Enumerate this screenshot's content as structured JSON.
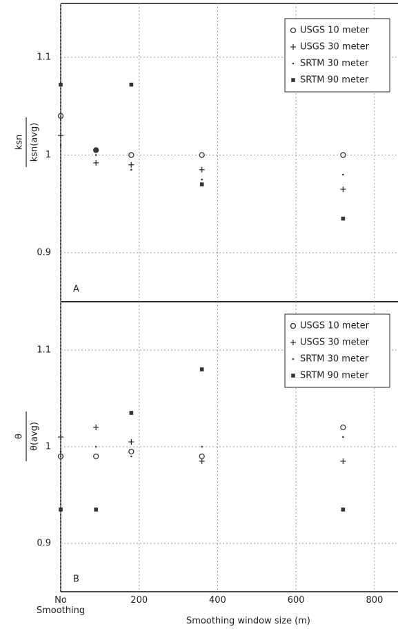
{
  "chart_data": [
    {
      "type": "scatter",
      "panel_label": "A",
      "ylabel_numerator": "ksn",
      "ylabel_denominator": "ksn(avg)",
      "x": [
        0,
        90,
        180,
        360,
        720
      ],
      "xlim": [
        0,
        860
      ],
      "xticks": [
        0,
        200,
        400,
        600,
        800
      ],
      "ylim": [
        0.85,
        1.155
      ],
      "yticks": [
        0.9,
        1,
        1.1
      ],
      "grid": true,
      "legend": "upper right",
      "series": [
        {
          "name": "USGS 10 meter",
          "marker": "circle",
          "color": "#333333",
          "values": [
            1.04,
            1.005,
            1.0,
            1.0,
            1.0
          ]
        },
        {
          "name": "USGS 30 meter",
          "marker": "plus",
          "color": "#333333",
          "values": [
            1.02,
            0.992,
            0.99,
            0.985,
            0.965
          ]
        },
        {
          "name": "SRTM 30 meter",
          "marker": "dot",
          "color": "#333333",
          "values": [
            1.01,
            1.0,
            0.985,
            0.975,
            0.98
          ]
        },
        {
          "name": "SRTM 90 meter",
          "marker": "square",
          "color": "#333333",
          "values": [
            1.072,
            1.005,
            1.072,
            0.97,
            0.935
          ]
        }
      ]
    },
    {
      "type": "scatter",
      "panel_label": "B",
      "ylabel_numerator": "θ",
      "ylabel_denominator": "θ(avg)",
      "xlabel": "Smoothing window size (m)",
      "x": [
        0,
        90,
        180,
        360,
        720
      ],
      "xlim": [
        0,
        860
      ],
      "xticks": [
        {
          "value": 0,
          "label": "No Smoothing"
        },
        200,
        400,
        600,
        800
      ],
      "ylim": [
        0.85,
        1.15
      ],
      "yticks": [
        0.9,
        1,
        1.1
      ],
      "grid": true,
      "legend": "upper right",
      "series": [
        {
          "name": "USGS 10 meter",
          "marker": "circle",
          "color": "#333333",
          "values": [
            0.99,
            0.99,
            0.995,
            0.99,
            1.02
          ]
        },
        {
          "name": "USGS 30 meter",
          "marker": "plus",
          "color": "#333333",
          "values": [
            1.01,
            1.02,
            1.005,
            0.985,
            0.985
          ]
        },
        {
          "name": "SRTM 30 meter",
          "marker": "dot",
          "color": "#333333",
          "values": [
            0.995,
            1.0,
            0.99,
            1.0,
            1.01
          ]
        },
        {
          "name": "SRTM 90 meter",
          "marker": "square",
          "color": "#333333",
          "values": [
            0.935,
            0.935,
            1.035,
            1.08,
            0.935
          ]
        }
      ]
    }
  ]
}
